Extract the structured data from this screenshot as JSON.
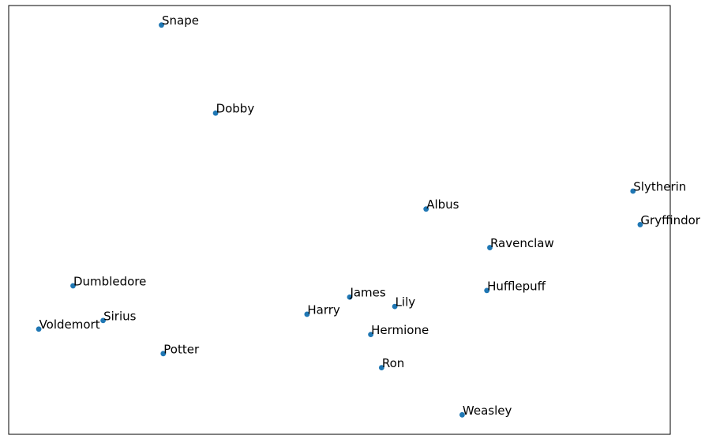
{
  "chart_data": {
    "type": "scatter",
    "title": "",
    "xlabel": "",
    "ylabel": "",
    "grid": false,
    "legend": "none",
    "axes_ticks_visible": false,
    "xlim": [
      -0.05,
      1.05
    ],
    "ylim": [
      -0.05,
      1.05
    ],
    "marker_color": "#1f77b4",
    "points": [
      {
        "label": "Snape",
        "x": 0.204,
        "y": 1.0
      },
      {
        "label": "Dobby",
        "x": 0.294,
        "y": 0.774
      },
      {
        "label": "Slytherin",
        "x": 0.988,
        "y": 0.574
      },
      {
        "label": "Albus",
        "x": 0.644,
        "y": 0.528
      },
      {
        "label": "Gryffindor",
        "x": 1.0,
        "y": 0.488
      },
      {
        "label": "Ravenclaw",
        "x": 0.75,
        "y": 0.429
      },
      {
        "label": "Dumbledore",
        "x": 0.057,
        "y": 0.331
      },
      {
        "label": "Hufflepuff",
        "x": 0.745,
        "y": 0.319
      },
      {
        "label": "James",
        "x": 0.517,
        "y": 0.302
      },
      {
        "label": "Lily",
        "x": 0.592,
        "y": 0.278
      },
      {
        "label": "Sirius",
        "x": 0.107,
        "y": 0.242
      },
      {
        "label": "Harry",
        "x": 0.446,
        "y": 0.258
      },
      {
        "label": "Voldemort",
        "x": 0.0,
        "y": 0.22
      },
      {
        "label": "Hermione",
        "x": 0.552,
        "y": 0.206
      },
      {
        "label": "Potter",
        "x": 0.207,
        "y": 0.157
      },
      {
        "label": "Ron",
        "x": 0.57,
        "y": 0.121
      },
      {
        "label": "Weasley",
        "x": 0.704,
        "y": 0.0
      }
    ]
  }
}
